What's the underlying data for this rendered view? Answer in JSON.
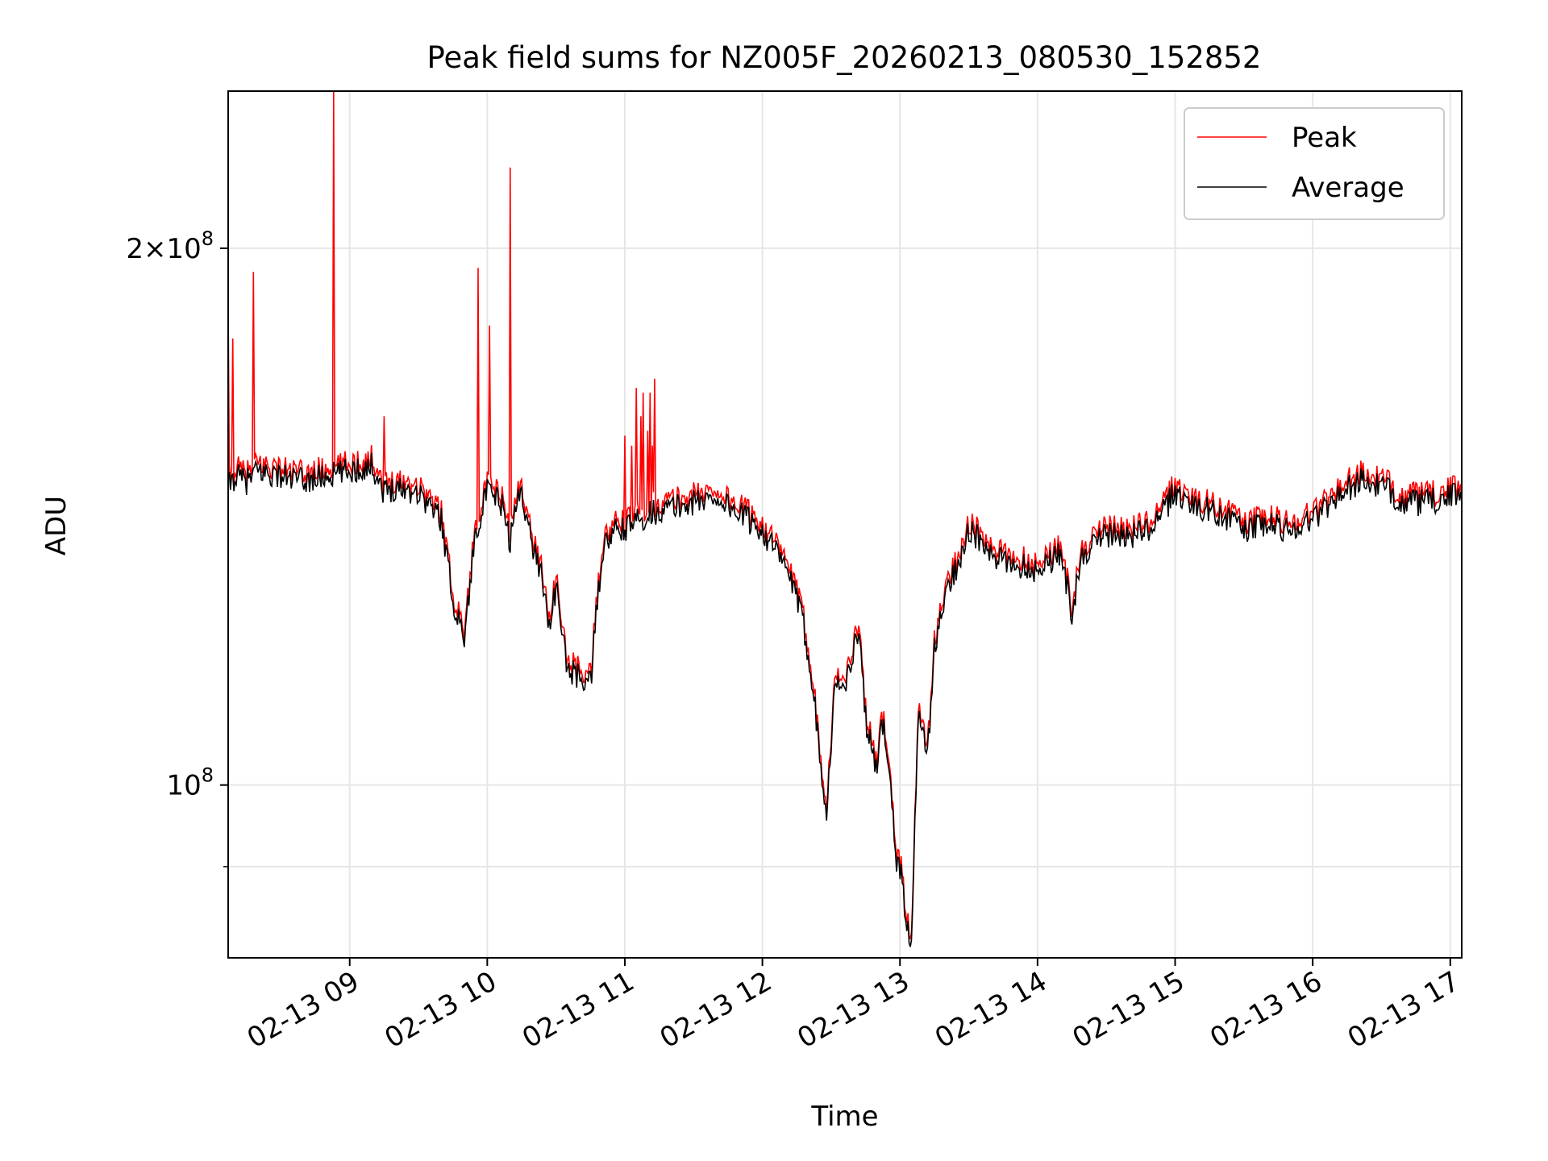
{
  "chart_data": {
    "type": "line",
    "title": "Peak field sums for NZ005F_20260213_080530_152852",
    "xlabel": "Time",
    "ylabel": "ADU",
    "y_scale": "log",
    "ylim": [
      80000000,
      245000000
    ],
    "xlim": [
      "2026-02-13 08:07",
      "2026-02-13 17:05"
    ],
    "grid": true,
    "legend_position": "top-right",
    "x_ticks": [
      {
        "value": "2026-02-13 09:00",
        "label": "02-13 09"
      },
      {
        "value": "2026-02-13 10:00",
        "label": "02-13 10"
      },
      {
        "value": "2026-02-13 11:00",
        "label": "02-13 11"
      },
      {
        "value": "2026-02-13 12:00",
        "label": "02-13 12"
      },
      {
        "value": "2026-02-13 13:00",
        "label": "02-13 13"
      },
      {
        "value": "2026-02-13 14:00",
        "label": "02-13 14"
      },
      {
        "value": "2026-02-13 15:00",
        "label": "02-13 15"
      },
      {
        "value": "2026-02-13 16:00",
        "label": "02-13 16"
      },
      {
        "value": "2026-02-13 17:00",
        "label": "02-13 17"
      }
    ],
    "y_ticks": [
      {
        "value": 100000000,
        "label": "10^8"
      },
      {
        "value": 200000000,
        "label": "2×10^8"
      }
    ],
    "y_minor_ticks": [
      90000000
    ],
    "series": [
      {
        "name": "Peak",
        "color": "#ff0000",
        "x": [
          "2026-02-13 08:07",
          "2026-02-13 08:10",
          "2026-02-13 08:15",
          "2026-02-13 08:20",
          "2026-02-13 08:30",
          "2026-02-13 08:40",
          "2026-02-13 08:50",
          "2026-02-13 09:00",
          "2026-02-13 09:10",
          "2026-02-13 09:15",
          "2026-02-13 09:20",
          "2026-02-13 09:30",
          "2026-02-13 09:40",
          "2026-02-13 09:45",
          "2026-02-13 09:50",
          "2026-02-13 09:55",
          "2026-02-13 10:00",
          "2026-02-13 10:06",
          "2026-02-13 10:10",
          "2026-02-13 10:12",
          "2026-02-13 10:15",
          "2026-02-13 10:18",
          "2026-02-13 10:20",
          "2026-02-13 10:24",
          "2026-02-13 10:27",
          "2026-02-13 10:30",
          "2026-02-13 10:35",
          "2026-02-13 10:40",
          "2026-02-13 10:45",
          "2026-02-13 10:50",
          "2026-02-13 10:54",
          "2026-02-13 10:57",
          "2026-02-13 11:00",
          "2026-02-13 11:10",
          "2026-02-13 11:20",
          "2026-02-13 11:30",
          "2026-02-13 11:40",
          "2026-02-13 11:50",
          "2026-02-13 12:00",
          "2026-02-13 12:06",
          "2026-02-13 12:12",
          "2026-02-13 12:18",
          "2026-02-13 12:22",
          "2026-02-13 12:25",
          "2026-02-13 12:28",
          "2026-02-13 12:32",
          "2026-02-13 12:35",
          "2026-02-13 12:39",
          "2026-02-13 12:42",
          "2026-02-13 12:45",
          "2026-02-13 12:50",
          "2026-02-13 12:52",
          "2026-02-13 12:55",
          "2026-02-13 12:58",
          "2026-02-13 13:01",
          "2026-02-13 13:03",
          "2026-02-13 13:05",
          "2026-02-13 13:08",
          "2026-02-13 13:12",
          "2026-02-13 13:15",
          "2026-02-13 13:20",
          "2026-02-13 13:25",
          "2026-02-13 13:30",
          "2026-02-13 13:35",
          "2026-02-13 13:40",
          "2026-02-13 13:50",
          "2026-02-13 14:00",
          "2026-02-13 14:10",
          "2026-02-13 14:15",
          "2026-02-13 14:20",
          "2026-02-13 14:30",
          "2026-02-13 14:40",
          "2026-02-13 14:50",
          "2026-02-13 15:00",
          "2026-02-13 15:10",
          "2026-02-13 15:20",
          "2026-02-13 15:30",
          "2026-02-13 15:40",
          "2026-02-13 15:50",
          "2026-02-13 16:00",
          "2026-02-13 16:10",
          "2026-02-13 16:20",
          "2026-02-13 16:30",
          "2026-02-13 16:40",
          "2026-02-13 16:50",
          "2026-02-13 17:00",
          "2026-02-13 17:05"
        ],
        "y": [
          148000000.0,
          150000000.0,
          149000000.0,
          151000000.0,
          150000000.0,
          149000000.0,
          150000000.0,
          151000000.0,
          152000000.0,
          147000000.0,
          148000000.0,
          147000000.0,
          142000000.0,
          128000000.0,
          122000000.0,
          140000000.0,
          147000000.0,
          145000000.0,
          138000000.0,
          143000000.0,
          148000000.0,
          140000000.0,
          137000000.0,
          132000000.0,
          124000000.0,
          130000000.0,
          117000000.0,
          116000000.0,
          115000000.0,
          136000000.0,
          139000000.0,
          140000000.0,
          140000000.0,
          143000000.0,
          144000000.0,
          145000000.0,
          146000000.0,
          143000000.0,
          140000000.0,
          136000000.0,
          132000000.0,
          124000000.0,
          115000000.0,
          105000000.0,
          98000000.0,
          116000000.0,
          114000000.0,
          118000000.0,
          124000000.0,
          110000000.0,
          102000000.0,
          110000000.0,
          105000000.0,
          92000000.0,
          90000000.0,
          84000000.0,
          83000000.0,
          110000000.0,
          105000000.0,
          120000000.0,
          129000000.0,
          134000000.0,
          140000000.0,
          138000000.0,
          135000000.0,
          134000000.0,
          133000000.0,
          136000000.0,
          126000000.0,
          136000000.0,
          139000000.0,
          139000000.0,
          140000000.0,
          147000000.0,
          144000000.0,
          143000000.0,
          140000000.0,
          141000000.0,
          140000000.0,
          142000000.0,
          146000000.0,
          149000000.0,
          148000000.0,
          145000000.0,
          145000000.0,
          146000000.0,
          147000000.0
        ],
        "spikes": [
          {
            "x": "2026-02-13 08:07",
            "y": 186000000.0
          },
          {
            "x": "2026-02-13 08:09",
            "y": 178000000.0
          },
          {
            "x": "2026-02-13 08:18",
            "y": 194000000.0
          },
          {
            "x": "2026-02-13 08:53",
            "y": 245000000.0
          },
          {
            "x": "2026-02-13 09:15",
            "y": 161000000.0
          },
          {
            "x": "2026-02-13 09:56",
            "y": 195000000.0
          },
          {
            "x": "2026-02-13 10:01",
            "y": 181000000.0
          },
          {
            "x": "2026-02-13 10:10",
            "y": 222000000.0
          },
          {
            "x": "2026-02-13 11:00",
            "y": 157000000.0
          },
          {
            "x": "2026-02-13 11:03",
            "y": 155000000.0
          },
          {
            "x": "2026-02-13 11:05",
            "y": 167000000.0
          },
          {
            "x": "2026-02-13 11:07",
            "y": 161000000.0
          },
          {
            "x": "2026-02-13 11:08",
            "y": 166000000.0
          },
          {
            "x": "2026-02-13 11:10",
            "y": 158000000.0
          },
          {
            "x": "2026-02-13 11:11",
            "y": 166000000.0
          },
          {
            "x": "2026-02-13 11:12",
            "y": 155000000.0
          },
          {
            "x": "2026-02-13 11:13",
            "y": 169000000.0
          }
        ]
      },
      {
        "name": "Average",
        "color": "#000000",
        "x": [
          "2026-02-13 08:07",
          "2026-02-13 08:10",
          "2026-02-13 08:15",
          "2026-02-13 08:20",
          "2026-02-13 08:30",
          "2026-02-13 08:40",
          "2026-02-13 08:50",
          "2026-02-13 09:00",
          "2026-02-13 09:10",
          "2026-02-13 09:15",
          "2026-02-13 09:20",
          "2026-02-13 09:30",
          "2026-02-13 09:40",
          "2026-02-13 09:45",
          "2026-02-13 09:50",
          "2026-02-13 09:55",
          "2026-02-13 10:00",
          "2026-02-13 10:06",
          "2026-02-13 10:10",
          "2026-02-13 10:12",
          "2026-02-13 10:15",
          "2026-02-13 10:18",
          "2026-02-13 10:20",
          "2026-02-13 10:24",
          "2026-02-13 10:27",
          "2026-02-13 10:30",
          "2026-02-13 10:35",
          "2026-02-13 10:40",
          "2026-02-13 10:45",
          "2026-02-13 10:50",
          "2026-02-13 10:54",
          "2026-02-13 10:57",
          "2026-02-13 11:00",
          "2026-02-13 11:10",
          "2026-02-13 11:20",
          "2026-02-13 11:30",
          "2026-02-13 11:40",
          "2026-02-13 11:50",
          "2026-02-13 12:00",
          "2026-02-13 12:06",
          "2026-02-13 12:12",
          "2026-02-13 12:18",
          "2026-02-13 12:22",
          "2026-02-13 12:25",
          "2026-02-13 12:28",
          "2026-02-13 12:32",
          "2026-02-13 12:35",
          "2026-02-13 12:39",
          "2026-02-13 12:42",
          "2026-02-13 12:45",
          "2026-02-13 12:50",
          "2026-02-13 12:52",
          "2026-02-13 12:55",
          "2026-02-13 12:58",
          "2026-02-13 13:01",
          "2026-02-13 13:03",
          "2026-02-13 13:05",
          "2026-02-13 13:08",
          "2026-02-13 13:12",
          "2026-02-13 13:15",
          "2026-02-13 13:20",
          "2026-02-13 13:25",
          "2026-02-13 13:30",
          "2026-02-13 13:35",
          "2026-02-13 13:40",
          "2026-02-13 13:50",
          "2026-02-13 14:00",
          "2026-02-13 14:10",
          "2026-02-13 14:15",
          "2026-02-13 14:20",
          "2026-02-13 14:30",
          "2026-02-13 14:40",
          "2026-02-13 14:50",
          "2026-02-13 15:00",
          "2026-02-13 15:10",
          "2026-02-13 15:20",
          "2026-02-13 15:30",
          "2026-02-13 15:40",
          "2026-02-13 15:50",
          "2026-02-13 16:00",
          "2026-02-13 16:10",
          "2026-02-13 16:20",
          "2026-02-13 16:30",
          "2026-02-13 16:40",
          "2026-02-13 16:50",
          "2026-02-13 17:00",
          "2026-02-13 17:05"
        ],
        "y": [
          147000000.0,
          149000000.0,
          148000000.0,
          150000000.0,
          149000000.0,
          148000000.0,
          149000000.0,
          150000000.0,
          151000000.0,
          146000000.0,
          147000000.0,
          146000000.0,
          141000000.0,
          127000000.0,
          121000000.0,
          139000000.0,
          146000000.0,
          144000000.0,
          137000000.0,
          142000000.0,
          147000000.0,
          139000000.0,
          136000000.0,
          131000000.0,
          123000000.0,
          129000000.0,
          116000000.0,
          115000000.0,
          114000000.0,
          135000000.0,
          138000000.0,
          139000000.0,
          139000000.0,
          142000000.0,
          143000000.0,
          144000000.0,
          145000000.0,
          142000000.0,
          139000000.0,
          135000000.0,
          131000000.0,
          123000000.0,
          114000000.0,
          104000000.0,
          97000000.0,
          115000000.0,
          113000000.0,
          117000000.0,
          123000000.0,
          109000000.0,
          101000000.0,
          109000000.0,
          104000000.0,
          91000000.0,
          89000000.0,
          83000000.0,
          82000000.0,
          109000000.0,
          104000000.0,
          119000000.0,
          128000000.0,
          133000000.0,
          139000000.0,
          137000000.0,
          134000000.0,
          133000000.0,
          132000000.0,
          135000000.0,
          125000000.0,
          135000000.0,
          138000000.0,
          138000000.0,
          139000000.0,
          146000000.0,
          143000000.0,
          142000000.0,
          139000000.0,
          140000000.0,
          139000000.0,
          141000000.0,
          145000000.0,
          148000000.0,
          147000000.0,
          144000000.0,
          144000000.0,
          145000000.0,
          146000000.0
        ]
      }
    ]
  }
}
